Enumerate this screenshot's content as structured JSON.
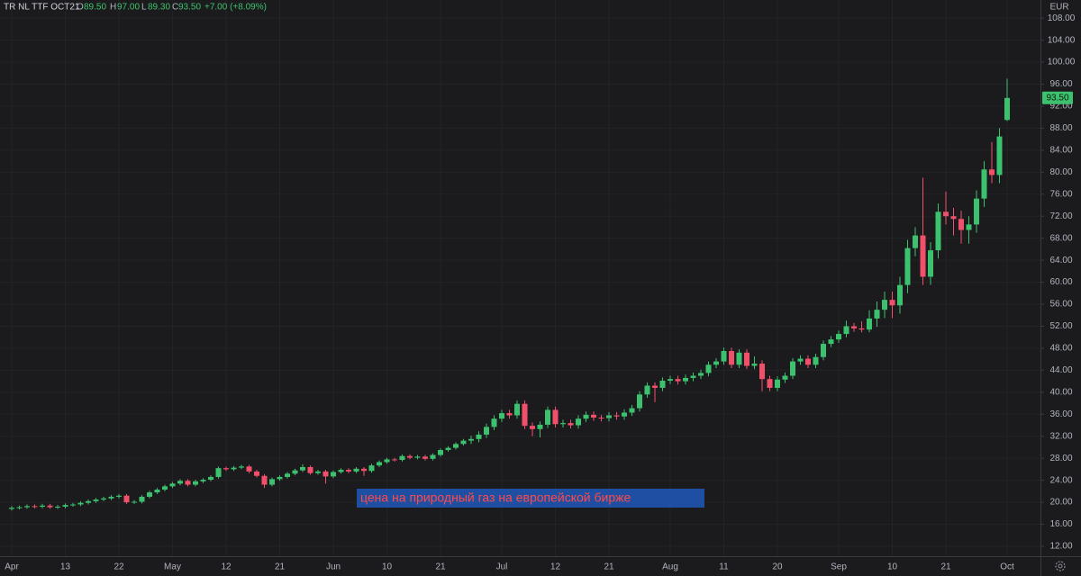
{
  "chart_data": {
    "type": "candlestick",
    "symbol": "TR NL TTF OCT21",
    "field_letters": [
      "O",
      "H",
      "L",
      "C"
    ],
    "last_value_labels": {
      "open": "89.50",
      "high": "97.00",
      "low": "89.30",
      "close": "93.50"
    },
    "change": 7,
    "change_pct": 8.09,
    "change_label": "+7.00 (+8.09%)",
    "currency": "EUR",
    "annotation": "цена на природный газ на европейской бирже",
    "up_color": "#3cc26e",
    "down_color": "#f0506a",
    "grid": true,
    "ylim": [
      10.2,
      111.3
    ],
    "yticks": [
      {
        "value": 12,
        "label": "12.00"
      },
      {
        "value": 16,
        "label": "16.00"
      },
      {
        "value": 20,
        "label": "20.00"
      },
      {
        "value": 24,
        "label": "24.00"
      },
      {
        "value": 28,
        "label": "28.00"
      },
      {
        "value": 32,
        "label": "32.00"
      },
      {
        "value": 36,
        "label": "36.00"
      },
      {
        "value": 40,
        "label": "40.00"
      },
      {
        "value": 44,
        "label": "44.00"
      },
      {
        "value": 48,
        "label": "48.00"
      },
      {
        "value": 52,
        "label": "52.00"
      },
      {
        "value": 56,
        "label": "56.00"
      },
      {
        "value": 60,
        "label": "60.00"
      },
      {
        "value": 64,
        "label": "64.00"
      },
      {
        "value": 68,
        "label": "68.00"
      },
      {
        "value": 72,
        "label": "72.00"
      },
      {
        "value": 76,
        "label": "76.00"
      },
      {
        "value": 80,
        "label": "80.00"
      },
      {
        "value": 84,
        "label": "84.00"
      },
      {
        "value": 88,
        "label": "88.00"
      },
      {
        "value": 92,
        "label": "92.00"
      },
      {
        "value": 96,
        "label": "96.00"
      },
      {
        "value": 100,
        "label": "100.00"
      },
      {
        "value": 104,
        "label": "104.00"
      },
      {
        "value": 108,
        "label": "108.00"
      }
    ],
    "categories": [
      "Apr",
      null,
      null,
      null,
      null,
      null,
      null,
      "13",
      null,
      null,
      null,
      null,
      null,
      null,
      "22",
      null,
      null,
      null,
      null,
      null,
      null,
      "May",
      null,
      null,
      null,
      null,
      null,
      null,
      "12",
      null,
      null,
      null,
      null,
      null,
      null,
      "21",
      null,
      null,
      null,
      null,
      null,
      null,
      "Jun",
      null,
      null,
      null,
      null,
      null,
      null,
      "10",
      null,
      null,
      null,
      null,
      null,
      null,
      "21",
      null,
      null,
      null,
      null,
      null,
      null,
      null,
      "Jul",
      null,
      null,
      null,
      null,
      null,
      null,
      "12",
      null,
      null,
      null,
      null,
      null,
      null,
      "21",
      null,
      null,
      null,
      null,
      null,
      null,
      null,
      "Aug",
      null,
      null,
      null,
      null,
      null,
      null,
      "11",
      null,
      null,
      null,
      null,
      null,
      null,
      "20",
      null,
      null,
      null,
      null,
      null,
      null,
      null,
      "Sep",
      null,
      null,
      null,
      null,
      null,
      null,
      "10",
      null,
      null,
      null,
      null,
      null,
      null,
      "21",
      null,
      null,
      null,
      null,
      null,
      null,
      null,
      "Oct"
    ],
    "open": [
      18.8,
      19.0,
      19.1,
      19.3,
      19.2,
      19.4,
      19.1,
      19.2,
      19.5,
      19.6,
      19.9,
      20.2,
      20.5,
      20.7,
      21.0,
      21.2,
      20.0,
      20.1,
      21.0,
      21.8,
      22.3,
      22.9,
      23.4,
      23.9,
      23.2,
      23.8,
      24.1,
      24.6,
      26.2,
      26.0,
      26.3,
      26.5,
      25.6,
      24.8,
      23.2,
      24.2,
      24.6,
      25.2,
      25.8,
      26.4,
      25.3,
      25.6,
      24.7,
      25.5,
      25.9,
      25.6,
      26.1,
      25.7,
      26.7,
      27.3,
      27.8,
      27.7,
      28.4,
      28.1,
      28.3,
      27.9,
      28.6,
      29.5,
      29.9,
      30.6,
      31.2,
      31.5,
      32.3,
      33.7,
      35.2,
      36.2,
      35.8,
      37.9,
      33.9,
      33.3,
      34.1,
      36.8,
      34.2,
      34.4,
      34.0,
      35.2,
      35.9,
      35.4,
      35.3,
      35.8,
      35.6,
      36.3,
      37.1,
      39.6,
      41.2,
      40.8,
      42.1,
      42.4,
      42.0,
      42.6,
      43.0,
      43.5,
      45.0,
      45.6,
      47.5,
      45.0,
      47.2,
      44.8,
      45.2,
      42.4,
      40.8,
      42.3,
      43.0,
      45.6,
      46.1,
      45.0,
      46.4,
      48.8,
      49.6,
      50.6,
      52.0,
      51.6,
      51.4,
      53.4,
      55.0,
      56.8,
      55.8,
      59.5,
      66.2,
      68.5,
      61.0,
      65.8,
      72.8,
      72.0,
      71.5,
      69.5,
      70.5,
      75.2,
      80.5,
      79.5,
      89.5
    ],
    "high": [
      19.3,
      19.4,
      19.6,
      19.6,
      19.7,
      19.7,
      19.5,
      19.8,
      19.9,
      20.2,
      20.5,
      20.8,
      21.0,
      21.3,
      21.5,
      21.5,
      20.4,
      21.3,
      22.1,
      22.6,
      23.2,
      23.7,
      24.2,
      24.2,
      24.1,
      24.4,
      24.9,
      26.5,
      26.5,
      26.6,
      26.8,
      26.8,
      25.9,
      25.1,
      24.5,
      24.9,
      25.5,
      26.1,
      26.9,
      26.7,
      25.9,
      25.9,
      25.8,
      26.2,
      26.2,
      26.4,
      26.4,
      27.0,
      27.6,
      28.1,
      28.1,
      28.7,
      28.7,
      28.6,
      28.6,
      28.9,
      29.8,
      30.2,
      30.9,
      31.5,
      32.1,
      32.9,
      34.3,
      35.8,
      36.8,
      36.8,
      38.5,
      38.5,
      34.5,
      34.7,
      37.4,
      37.4,
      35.0,
      35.0,
      35.8,
      36.5,
      36.5,
      35.9,
      36.4,
      36.4,
      36.9,
      37.7,
      40.2,
      41.8,
      41.8,
      42.7,
      43.0,
      43.0,
      43.2,
      43.6,
      44.1,
      45.6,
      46.2,
      48.1,
      48.1,
      47.8,
      47.8,
      46.5,
      45.8,
      43.0,
      42.9,
      43.6,
      46.2,
      46.7,
      46.7,
      47.0,
      49.4,
      50.2,
      51.2,
      53.0,
      52.6,
      52.9,
      54.9,
      56.5,
      58.3,
      58.3,
      61.0,
      67.7,
      70.0,
      79.0,
      67.3,
      74.3,
      76.5,
      73.5,
      73.0,
      72.0,
      76.7,
      82.0,
      85.5,
      88.0,
      97.0
    ],
    "low": [
      18.5,
      18.7,
      18.8,
      18.9,
      18.9,
      18.8,
      18.8,
      18.9,
      19.2,
      19.3,
      19.6,
      19.9,
      20.2,
      20.4,
      20.7,
      19.7,
      19.7,
      19.8,
      20.7,
      21.5,
      22.0,
      22.6,
      23.1,
      22.9,
      22.9,
      23.5,
      23.8,
      24.3,
      25.7,
      25.7,
      26.0,
      25.3,
      24.5,
      22.6,
      22.9,
      23.9,
      24.3,
      24.9,
      25.5,
      25.0,
      25.0,
      23.4,
      24.4,
      25.2,
      25.3,
      25.3,
      24.8,
      25.4,
      26.4,
      27.0,
      27.4,
      27.4,
      27.8,
      27.8,
      27.6,
      27.6,
      28.3,
      29.2,
      29.6,
      30.3,
      30.6,
      30.9,
      31.7,
      33.1,
      34.6,
      35.2,
      35.2,
      33.3,
      32.0,
      31.8,
      33.5,
      33.6,
      33.6,
      33.4,
      33.4,
      34.6,
      34.8,
      34.7,
      34.7,
      35.0,
      35.0,
      35.7,
      36.5,
      39.0,
      38.2,
      40.2,
      41.5,
      41.4,
      41.4,
      42.0,
      42.4,
      42.9,
      44.4,
      45.0,
      44.4,
      44.4,
      44.2,
      44.2,
      40.2,
      40.2,
      40.2,
      41.7,
      42.4,
      45.0,
      44.4,
      44.4,
      45.8,
      48.2,
      49.0,
      50.0,
      51.0,
      50.9,
      50.9,
      51.9,
      53.5,
      53.5,
      54.3,
      58.0,
      64.7,
      59.5,
      59.5,
      64.3,
      70.5,
      68.5,
      67.0,
      67.0,
      69.0,
      73.7,
      78.0,
      78.0,
      89.3
    ],
    "close": [
      19.0,
      19.1,
      19.3,
      19.2,
      19.4,
      19.1,
      19.2,
      19.5,
      19.6,
      19.9,
      20.2,
      20.5,
      20.7,
      21.0,
      21.2,
      20.0,
      20.1,
      21.0,
      21.8,
      22.3,
      22.9,
      23.4,
      23.9,
      23.2,
      23.8,
      24.1,
      24.6,
      26.2,
      26.0,
      26.3,
      26.5,
      25.6,
      24.8,
      23.2,
      24.2,
      24.6,
      25.2,
      25.8,
      26.4,
      25.3,
      25.6,
      24.7,
      25.5,
      25.9,
      25.6,
      26.1,
      25.7,
      26.7,
      27.3,
      27.8,
      27.7,
      28.4,
      28.1,
      28.3,
      27.9,
      28.6,
      29.5,
      29.9,
      30.6,
      31.2,
      31.5,
      32.3,
      33.7,
      35.2,
      36.2,
      35.8,
      37.9,
      33.9,
      33.3,
      34.1,
      36.8,
      34.2,
      34.4,
      34.0,
      35.2,
      35.9,
      35.4,
      35.3,
      35.8,
      35.6,
      36.3,
      37.1,
      39.6,
      41.2,
      40.8,
      42.1,
      42.4,
      42.0,
      42.6,
      43.0,
      43.5,
      45.0,
      45.6,
      47.5,
      45.0,
      47.2,
      44.8,
      45.2,
      42.4,
      40.8,
      42.3,
      43.0,
      45.6,
      46.1,
      45.0,
      46.4,
      48.8,
      49.6,
      50.6,
      52.0,
      51.6,
      51.4,
      53.4,
      55.0,
      56.8,
      55.8,
      59.5,
      66.2,
      68.5,
      61.0,
      65.8,
      72.8,
      72.0,
      71.5,
      69.5,
      70.5,
      75.2,
      80.5,
      79.5,
      86.5,
      93.5
    ]
  }
}
